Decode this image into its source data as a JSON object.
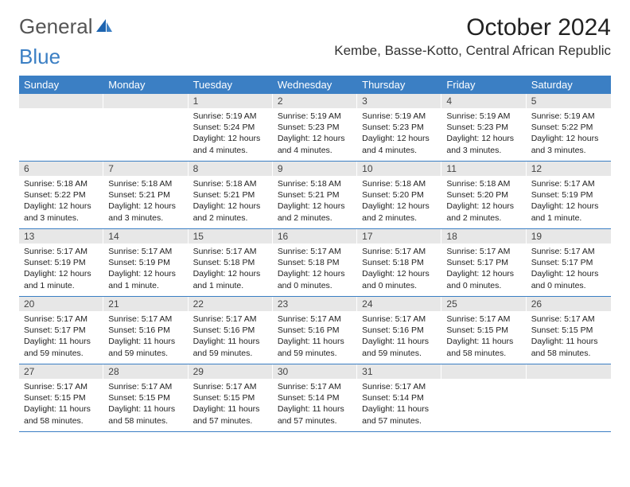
{
  "logo": {
    "general": "General",
    "blue": "Blue"
  },
  "title": "October 2024",
  "location": "Kembe, Basse-Kotto, Central African Republic",
  "weekdays": [
    "Sunday",
    "Monday",
    "Tuesday",
    "Wednesday",
    "Thursday",
    "Friday",
    "Saturday"
  ],
  "colors": {
    "header_bg": "#3b7fc4",
    "daynum_bg": "#e7e7e7",
    "text": "#222222",
    "logo_gray": "#555555",
    "logo_blue": "#3b7fc4"
  },
  "weeks": [
    [
      {
        "n": "",
        "empty": true
      },
      {
        "n": "",
        "empty": true
      },
      {
        "n": "1",
        "sunrise": "Sunrise: 5:19 AM",
        "sunset": "Sunset: 5:24 PM",
        "daylight": "Daylight: 12 hours and 4 minutes."
      },
      {
        "n": "2",
        "sunrise": "Sunrise: 5:19 AM",
        "sunset": "Sunset: 5:23 PM",
        "daylight": "Daylight: 12 hours and 4 minutes."
      },
      {
        "n": "3",
        "sunrise": "Sunrise: 5:19 AM",
        "sunset": "Sunset: 5:23 PM",
        "daylight": "Daylight: 12 hours and 4 minutes."
      },
      {
        "n": "4",
        "sunrise": "Sunrise: 5:19 AM",
        "sunset": "Sunset: 5:23 PM",
        "daylight": "Daylight: 12 hours and 3 minutes."
      },
      {
        "n": "5",
        "sunrise": "Sunrise: 5:19 AM",
        "sunset": "Sunset: 5:22 PM",
        "daylight": "Daylight: 12 hours and 3 minutes."
      }
    ],
    [
      {
        "n": "6",
        "sunrise": "Sunrise: 5:18 AM",
        "sunset": "Sunset: 5:22 PM",
        "daylight": "Daylight: 12 hours and 3 minutes."
      },
      {
        "n": "7",
        "sunrise": "Sunrise: 5:18 AM",
        "sunset": "Sunset: 5:21 PM",
        "daylight": "Daylight: 12 hours and 3 minutes."
      },
      {
        "n": "8",
        "sunrise": "Sunrise: 5:18 AM",
        "sunset": "Sunset: 5:21 PM",
        "daylight": "Daylight: 12 hours and 2 minutes."
      },
      {
        "n": "9",
        "sunrise": "Sunrise: 5:18 AM",
        "sunset": "Sunset: 5:21 PM",
        "daylight": "Daylight: 12 hours and 2 minutes."
      },
      {
        "n": "10",
        "sunrise": "Sunrise: 5:18 AM",
        "sunset": "Sunset: 5:20 PM",
        "daylight": "Daylight: 12 hours and 2 minutes."
      },
      {
        "n": "11",
        "sunrise": "Sunrise: 5:18 AM",
        "sunset": "Sunset: 5:20 PM",
        "daylight": "Daylight: 12 hours and 2 minutes."
      },
      {
        "n": "12",
        "sunrise": "Sunrise: 5:17 AM",
        "sunset": "Sunset: 5:19 PM",
        "daylight": "Daylight: 12 hours and 1 minute."
      }
    ],
    [
      {
        "n": "13",
        "sunrise": "Sunrise: 5:17 AM",
        "sunset": "Sunset: 5:19 PM",
        "daylight": "Daylight: 12 hours and 1 minute."
      },
      {
        "n": "14",
        "sunrise": "Sunrise: 5:17 AM",
        "sunset": "Sunset: 5:19 PM",
        "daylight": "Daylight: 12 hours and 1 minute."
      },
      {
        "n": "15",
        "sunrise": "Sunrise: 5:17 AM",
        "sunset": "Sunset: 5:18 PM",
        "daylight": "Daylight: 12 hours and 1 minute."
      },
      {
        "n": "16",
        "sunrise": "Sunrise: 5:17 AM",
        "sunset": "Sunset: 5:18 PM",
        "daylight": "Daylight: 12 hours and 0 minutes."
      },
      {
        "n": "17",
        "sunrise": "Sunrise: 5:17 AM",
        "sunset": "Sunset: 5:18 PM",
        "daylight": "Daylight: 12 hours and 0 minutes."
      },
      {
        "n": "18",
        "sunrise": "Sunrise: 5:17 AM",
        "sunset": "Sunset: 5:17 PM",
        "daylight": "Daylight: 12 hours and 0 minutes."
      },
      {
        "n": "19",
        "sunrise": "Sunrise: 5:17 AM",
        "sunset": "Sunset: 5:17 PM",
        "daylight": "Daylight: 12 hours and 0 minutes."
      }
    ],
    [
      {
        "n": "20",
        "sunrise": "Sunrise: 5:17 AM",
        "sunset": "Sunset: 5:17 PM",
        "daylight": "Daylight: 11 hours and 59 minutes."
      },
      {
        "n": "21",
        "sunrise": "Sunrise: 5:17 AM",
        "sunset": "Sunset: 5:16 PM",
        "daylight": "Daylight: 11 hours and 59 minutes."
      },
      {
        "n": "22",
        "sunrise": "Sunrise: 5:17 AM",
        "sunset": "Sunset: 5:16 PM",
        "daylight": "Daylight: 11 hours and 59 minutes."
      },
      {
        "n": "23",
        "sunrise": "Sunrise: 5:17 AM",
        "sunset": "Sunset: 5:16 PM",
        "daylight": "Daylight: 11 hours and 59 minutes."
      },
      {
        "n": "24",
        "sunrise": "Sunrise: 5:17 AM",
        "sunset": "Sunset: 5:16 PM",
        "daylight": "Daylight: 11 hours and 59 minutes."
      },
      {
        "n": "25",
        "sunrise": "Sunrise: 5:17 AM",
        "sunset": "Sunset: 5:15 PM",
        "daylight": "Daylight: 11 hours and 58 minutes."
      },
      {
        "n": "26",
        "sunrise": "Sunrise: 5:17 AM",
        "sunset": "Sunset: 5:15 PM",
        "daylight": "Daylight: 11 hours and 58 minutes."
      }
    ],
    [
      {
        "n": "27",
        "sunrise": "Sunrise: 5:17 AM",
        "sunset": "Sunset: 5:15 PM",
        "daylight": "Daylight: 11 hours and 58 minutes."
      },
      {
        "n": "28",
        "sunrise": "Sunrise: 5:17 AM",
        "sunset": "Sunset: 5:15 PM",
        "daylight": "Daylight: 11 hours and 58 minutes."
      },
      {
        "n": "29",
        "sunrise": "Sunrise: 5:17 AM",
        "sunset": "Sunset: 5:15 PM",
        "daylight": "Daylight: 11 hours and 57 minutes."
      },
      {
        "n": "30",
        "sunrise": "Sunrise: 5:17 AM",
        "sunset": "Sunset: 5:14 PM",
        "daylight": "Daylight: 11 hours and 57 minutes."
      },
      {
        "n": "31",
        "sunrise": "Sunrise: 5:17 AM",
        "sunset": "Sunset: 5:14 PM",
        "daylight": "Daylight: 11 hours and 57 minutes."
      },
      {
        "n": "",
        "empty": true
      },
      {
        "n": "",
        "empty": true
      }
    ]
  ]
}
